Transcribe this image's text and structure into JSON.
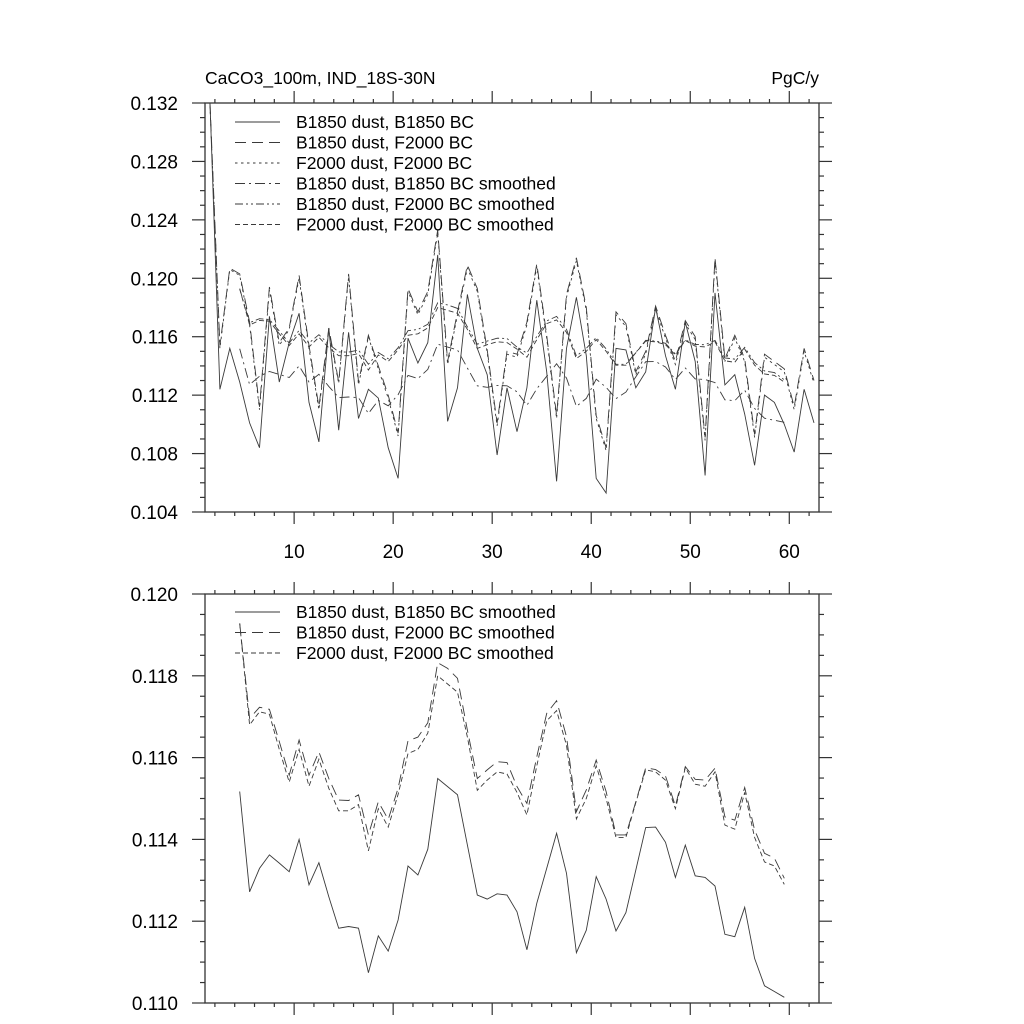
{
  "chart_data": [
    {
      "type": "line",
      "title_left": "CaCO3_100m, IND_18S-30N",
      "title_right": "PgC/y",
      "xlim": [
        1,
        63
      ],
      "ylim": [
        0.104,
        0.132
      ],
      "x_ticks": [
        "10",
        "20",
        "30",
        "40",
        "50",
        "60"
      ],
      "y_ticks": [
        "0.132",
        "0.128",
        "0.124",
        "0.120",
        "0.116",
        "0.112",
        "0.108",
        "0.104"
      ],
      "grid": false,
      "legend_position": "top-left",
      "series": [
        {
          "name": "B1850 dust, B1850 BC",
          "style": "solid",
          "x_start": 1.5,
          "values": [
            0.132,
            0.1124,
            0.1152,
            0.1129,
            0.1101,
            0.1084,
            0.1174,
            0.1129,
            0.1156,
            0.1176,
            0.1115,
            0.1088,
            0.1166,
            0.1096,
            0.1163,
            0.1104,
            0.1124,
            0.1118,
            0.1084,
            0.1063,
            0.1159,
            0.1142,
            0.1156,
            0.1216,
            0.1102,
            0.1125,
            0.1189,
            0.1152,
            0.1134,
            0.1079,
            0.1125,
            0.1095,
            0.1125,
            0.1185,
            0.1136,
            0.1061,
            0.1152,
            0.1187,
            0.1147,
            0.1063,
            0.1053,
            0.1152,
            0.1151,
            0.1125,
            0.1136,
            0.118,
            0.1147,
            0.1124,
            0.117,
            0.1143,
            0.1065,
            0.119,
            0.1127,
            0.1134,
            0.1107,
            0.1072,
            0.112,
            0.1115,
            0.11,
            0.1081,
            0.1124,
            0.1101
          ]
        },
        {
          "name": "B1850 dust, F2000 BC",
          "style": "long-dash",
          "x_start": 1.5,
          "values": [
            0.132,
            0.1154,
            0.1207,
            0.1203,
            0.117,
            0.1112,
            0.1194,
            0.1156,
            0.1166,
            0.1202,
            0.1154,
            0.1112,
            0.1166,
            0.1129,
            0.1203,
            0.1129,
            0.1161,
            0.114,
            0.112,
            0.1094,
            0.1193,
            0.1177,
            0.1191,
            0.1233,
            0.1143,
            0.1177,
            0.1209,
            0.1193,
            0.1151,
            0.1101,
            0.115,
            0.1148,
            0.117,
            0.121,
            0.1161,
            0.1106,
            0.1189,
            0.1214,
            0.118,
            0.1106,
            0.1084,
            0.1177,
            0.1169,
            0.1136,
            0.115,
            0.1181,
            0.1161,
            0.1143,
            0.1171,
            0.116,
            0.1091,
            0.1214,
            0.1145,
            0.1161,
            0.1145,
            0.1093,
            0.1148,
            0.1143,
            0.1138,
            0.1112,
            0.1152,
            0.113
          ]
        },
        {
          "name": "F2000 dust, F2000 BC",
          "style": "dotted",
          "x_start": 1.5,
          "values": [
            0.1318,
            0.1152,
            0.1206,
            0.1202,
            0.1168,
            0.111,
            0.1192,
            0.1154,
            0.1165,
            0.12,
            0.1152,
            0.111,
            0.1164,
            0.1128,
            0.1201,
            0.1127,
            0.116,
            0.1138,
            0.1118,
            0.1092,
            0.1191,
            0.1175,
            0.1189,
            0.1231,
            0.1141,
            0.1175,
            0.1207,
            0.1191,
            0.1149,
            0.1099,
            0.1148,
            0.1146,
            0.1168,
            0.1208,
            0.1159,
            0.1104,
            0.1187,
            0.1212,
            0.1178,
            0.1104,
            0.1082,
            0.1175,
            0.1167,
            0.1134,
            0.1148,
            0.1179,
            0.1159,
            0.1141,
            0.1169,
            0.1158,
            0.1089,
            0.1212,
            0.1143,
            0.1159,
            0.1143,
            0.1091,
            0.1146,
            0.1141,
            0.1136,
            0.111,
            0.115,
            0.1128
          ]
        },
        {
          "name": "B1850 dust, B1850 BC smoothed",
          "style": "dash-dot",
          "x_start": 4.5,
          "values": [
            0.11517,
            0.11272,
            0.11329,
            0.11362,
            0.11342,
            0.11321,
            0.114,
            0.11289,
            0.11343,
            0.1126,
            0.11183,
            0.11187,
            0.11183,
            0.11074,
            0.11164,
            0.11127,
            0.11203,
            0.11335,
            0.11313,
            0.11376,
            0.11549,
            0.11529,
            0.11509,
            0.11386,
            0.11264,
            0.11254,
            0.11267,
            0.11264,
            0.11223,
            0.1113,
            0.11244,
            0.11329,
            0.11415,
            0.11317,
            0.11123,
            0.11178,
            0.11309,
            0.11254,
            0.11176,
            0.11221,
            0.11325,
            0.11429,
            0.1143,
            0.11393,
            0.11307,
            0.11386,
            0.11311,
            0.11307,
            0.11286,
            0.11168,
            0.11162,
            0.11234,
            0.11109,
            0.11042,
            0.11028,
            0.11014
          ]
        },
        {
          "name": "B1850 dust, F2000 BC smoothed",
          "style": "dash-dot-dot",
          "x_start": 4.5,
          "values": [
            0.11928,
            0.11696,
            0.11723,
            0.11718,
            0.11639,
            0.11557,
            0.11643,
            0.11557,
            0.11614,
            0.11549,
            0.11496,
            0.11495,
            0.11509,
            0.11411,
            0.11492,
            0.11449,
            0.11525,
            0.11641,
            0.1165,
            0.11685,
            0.11832,
            0.11818,
            0.11794,
            0.11667,
            0.11549,
            0.1157,
            0.1159,
            0.11588,
            0.11529,
            0.11488,
            0.11602,
            0.11708,
            0.11739,
            0.11651,
            0.11468,
            0.11521,
            0.11594,
            0.11517,
            0.11411,
            0.11411,
            0.11492,
            0.11575,
            0.11571,
            0.11555,
            0.11482,
            0.11578,
            0.11547,
            0.11545,
            0.11574,
            0.11455,
            0.11447,
            0.11527,
            0.11423,
            0.11366,
            0.11354,
            0.11305
          ]
        },
        {
          "name": "F2000 dust, F2000 BC smoothed",
          "style": "short-dash",
          "x_start": 4.5,
          "values": [
            0.11928,
            0.1168,
            0.11712,
            0.11706,
            0.1162,
            0.1154,
            0.1162,
            0.1153,
            0.11596,
            0.11525,
            0.1147,
            0.1147,
            0.11485,
            0.11372,
            0.11475,
            0.1143,
            0.1151,
            0.1161,
            0.1162,
            0.1166,
            0.118,
            0.1178,
            0.1176,
            0.1165,
            0.1152,
            0.11545,
            0.11565,
            0.1156,
            0.11515,
            0.1146,
            0.1158,
            0.1169,
            0.11715,
            0.1163,
            0.1145,
            0.115,
            0.1158,
            0.115,
            0.11405,
            0.11405,
            0.1149,
            0.1157,
            0.11565,
            0.11545,
            0.11475,
            0.11575,
            0.11535,
            0.1153,
            0.11565,
            0.11435,
            0.11425,
            0.11515,
            0.11405,
            0.11345,
            0.11335,
            0.1129
          ]
        }
      ]
    },
    {
      "type": "line",
      "xlim": [
        1,
        63
      ],
      "ylim": [
        0.11,
        0.12
      ],
      "y_ticks": [
        "0.120",
        "0.118",
        "0.116",
        "0.114",
        "0.112",
        "0.110"
      ],
      "grid": false,
      "legend_position": "top-left",
      "series": [
        {
          "name": "B1850 dust, B1850 BC smoothed",
          "style": "solid",
          "x_start": 4.5,
          "values": [
            0.11517,
            0.11272,
            0.11329,
            0.11362,
            0.11342,
            0.11321,
            0.114,
            0.11289,
            0.11343,
            0.1126,
            0.11183,
            0.11187,
            0.11183,
            0.11074,
            0.11164,
            0.11127,
            0.11203,
            0.11335,
            0.11313,
            0.11376,
            0.11549,
            0.11529,
            0.11509,
            0.11386,
            0.11264,
            0.11254,
            0.11267,
            0.11264,
            0.11223,
            0.1113,
            0.11244,
            0.11329,
            0.11415,
            0.11317,
            0.11123,
            0.11178,
            0.11309,
            0.11254,
            0.11176,
            0.11221,
            0.11325,
            0.11429,
            0.1143,
            0.11393,
            0.11307,
            0.11386,
            0.11311,
            0.11307,
            0.11286,
            0.11168,
            0.11162,
            0.11234,
            0.11109,
            0.11042,
            0.11028,
            0.11014
          ]
        },
        {
          "name": "B1850 dust, F2000 BC smoothed",
          "style": "long-dash",
          "x_start": 4.5,
          "values": [
            0.11928,
            0.11696,
            0.11723,
            0.11718,
            0.11639,
            0.11557,
            0.11643,
            0.11557,
            0.11614,
            0.11549,
            0.11496,
            0.11495,
            0.11509,
            0.11411,
            0.11492,
            0.11449,
            0.11525,
            0.11641,
            0.1165,
            0.11685,
            0.11832,
            0.11818,
            0.11794,
            0.11667,
            0.11549,
            0.1157,
            0.1159,
            0.11588,
            0.11529,
            0.11488,
            0.11602,
            0.11708,
            0.11739,
            0.11651,
            0.11468,
            0.11521,
            0.11594,
            0.11517,
            0.11411,
            0.11411,
            0.11492,
            0.11575,
            0.11571,
            0.11555,
            0.11482,
            0.11578,
            0.11547,
            0.11545,
            0.11574,
            0.11455,
            0.11447,
            0.11527,
            0.11423,
            0.11366,
            0.11354,
            0.11305
          ]
        },
        {
          "name": "F2000 dust, F2000 BC smoothed",
          "style": "short-dash",
          "x_start": 4.5,
          "values": [
            0.11928,
            0.1168,
            0.11712,
            0.11706,
            0.1162,
            0.1154,
            0.1162,
            0.1153,
            0.11596,
            0.11525,
            0.1147,
            0.1147,
            0.11485,
            0.11372,
            0.11475,
            0.1143,
            0.1151,
            0.1161,
            0.1162,
            0.1166,
            0.118,
            0.1178,
            0.1176,
            0.1165,
            0.1152,
            0.11545,
            0.11565,
            0.1156,
            0.11515,
            0.1146,
            0.1158,
            0.1169,
            0.11715,
            0.1163,
            0.1145,
            0.115,
            0.1158,
            0.115,
            0.11405,
            0.11405,
            0.1149,
            0.1157,
            0.11565,
            0.11545,
            0.11475,
            0.11575,
            0.11535,
            0.1153,
            0.11565,
            0.11435,
            0.11425,
            0.11515,
            0.11405,
            0.11345,
            0.11335,
            0.1129
          ]
        }
      ]
    }
  ],
  "colors": {
    "line": "#3a3a3a",
    "axis": "#333333",
    "text": "#000000"
  }
}
